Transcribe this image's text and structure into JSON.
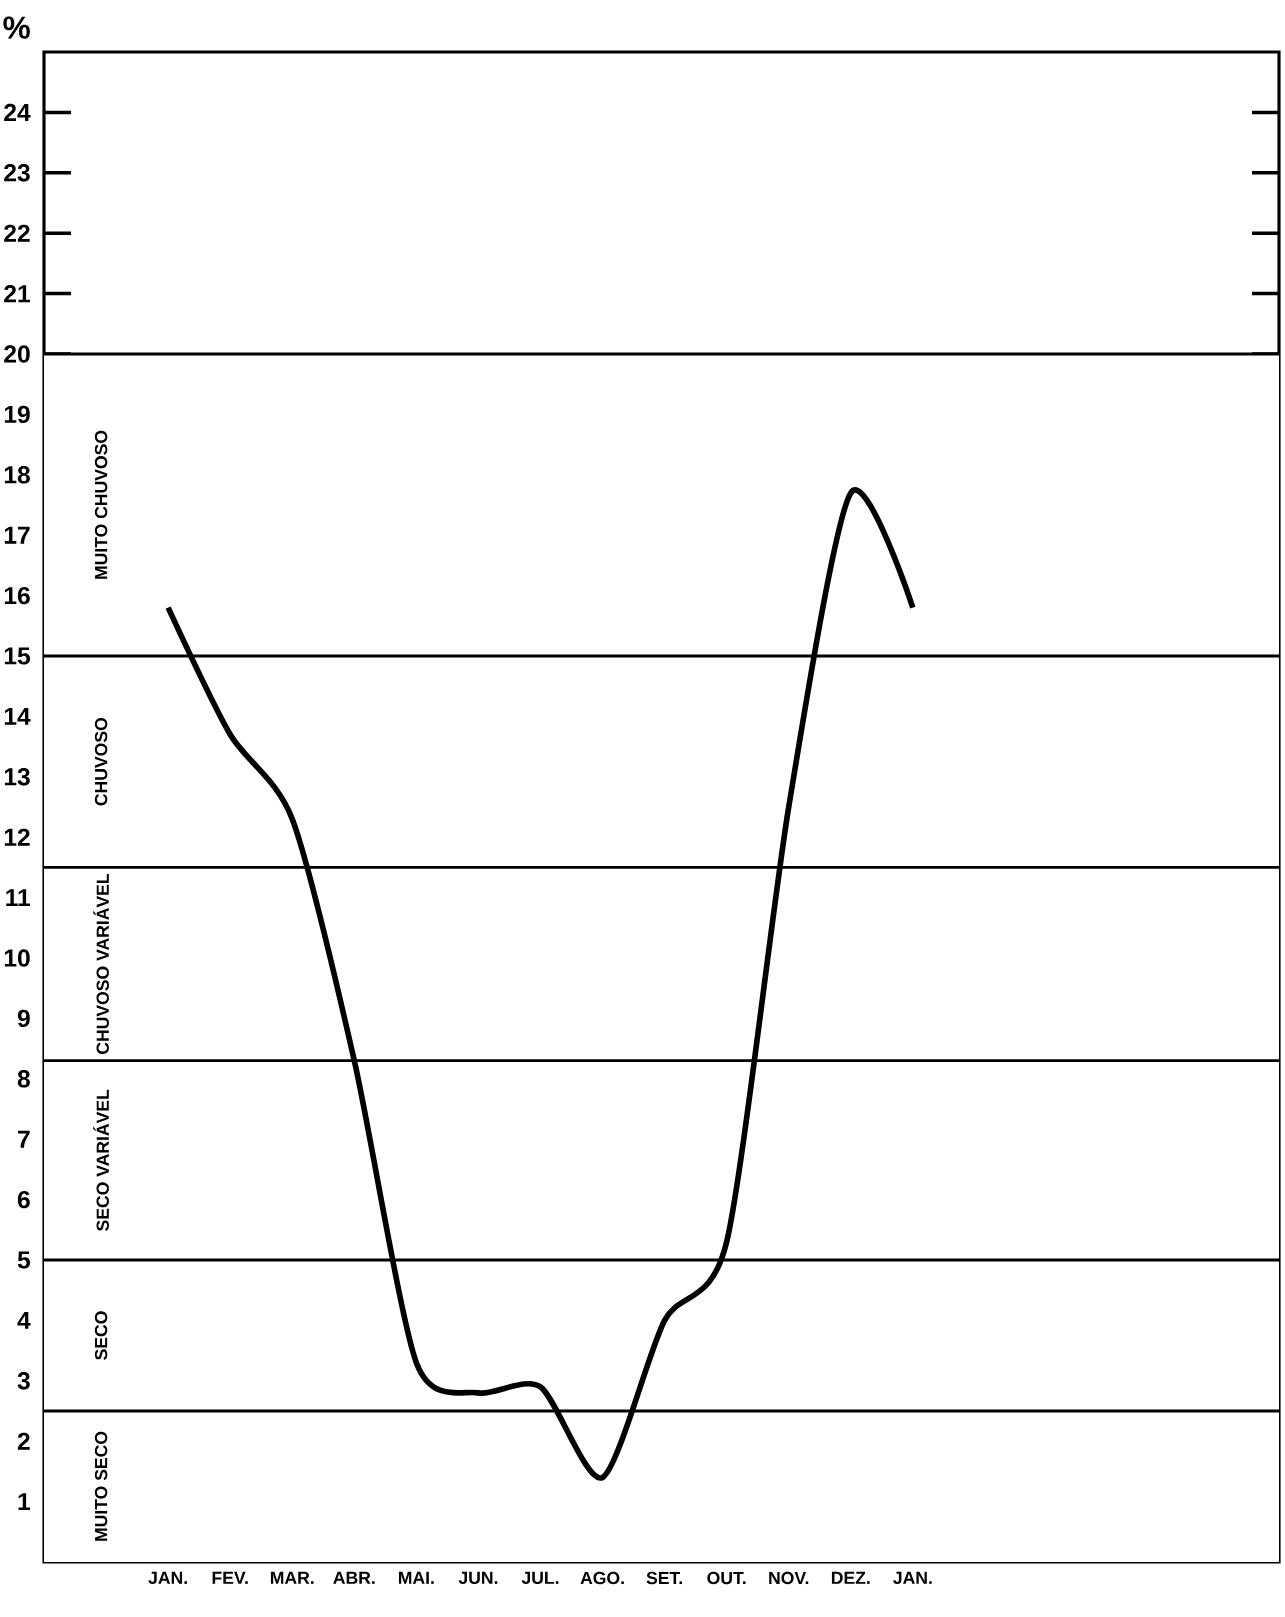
{
  "chart_data": {
    "type": "line",
    "ylabel": "%",
    "categories": [
      "JAN.",
      "FEV.",
      "MAR.",
      "ABR.",
      "MAI.",
      "JUN.",
      "JUL.",
      "AGO.",
      "SET.",
      "OUT.",
      "NOV.",
      "DEZ.",
      "JAN."
    ],
    "series": [
      {
        "color": "#000000",
        "values": [
          15.8,
          13.7,
          12.3,
          8.3,
          3.3,
          2.8,
          2.9,
          1.4,
          4.0,
          5.3,
          12.5,
          17.7,
          15.8
        ]
      }
    ],
    "ylim": [
      0,
      25
    ],
    "yticks": [
      1,
      2,
      3,
      4,
      5,
      6,
      7,
      8,
      9,
      10,
      11,
      12,
      13,
      14,
      15,
      16,
      17,
      18,
      19,
      20,
      21,
      22,
      23,
      24
    ],
    "ref_lines": [
      {
        "axis": "y",
        "value": 20
      },
      {
        "axis": "y",
        "value": 15
      },
      {
        "axis": "y",
        "value": 11.5
      },
      {
        "axis": "y",
        "value": 8.3
      },
      {
        "axis": "y",
        "value": 5
      },
      {
        "axis": "y",
        "value": 2.5
      }
    ],
    "bands": [
      {
        "axis": "y",
        "from": 15,
        "to": 20,
        "label": "MUITO CHUVOSO",
        "color": "#ffffff"
      },
      {
        "axis": "y",
        "from": 11.5,
        "to": 15,
        "label": "CHUVOSO",
        "color": "#ffffff"
      },
      {
        "axis": "y",
        "from": 8.3,
        "to": 11.5,
        "label": "CHUVOSO VARIÁVEL",
        "color": "#ffffff"
      },
      {
        "axis": "y",
        "from": 5,
        "to": 8.3,
        "label": "SECO VARIÁVEL",
        "color": "#ffffff"
      },
      {
        "axis": "y",
        "from": 2.5,
        "to": 5,
        "label": "SECO",
        "color": "#ffffff"
      },
      {
        "axis": "y",
        "from": 0,
        "to": 2.5,
        "label": "MUITO SECO",
        "color": "#ffffff"
      }
    ]
  }
}
